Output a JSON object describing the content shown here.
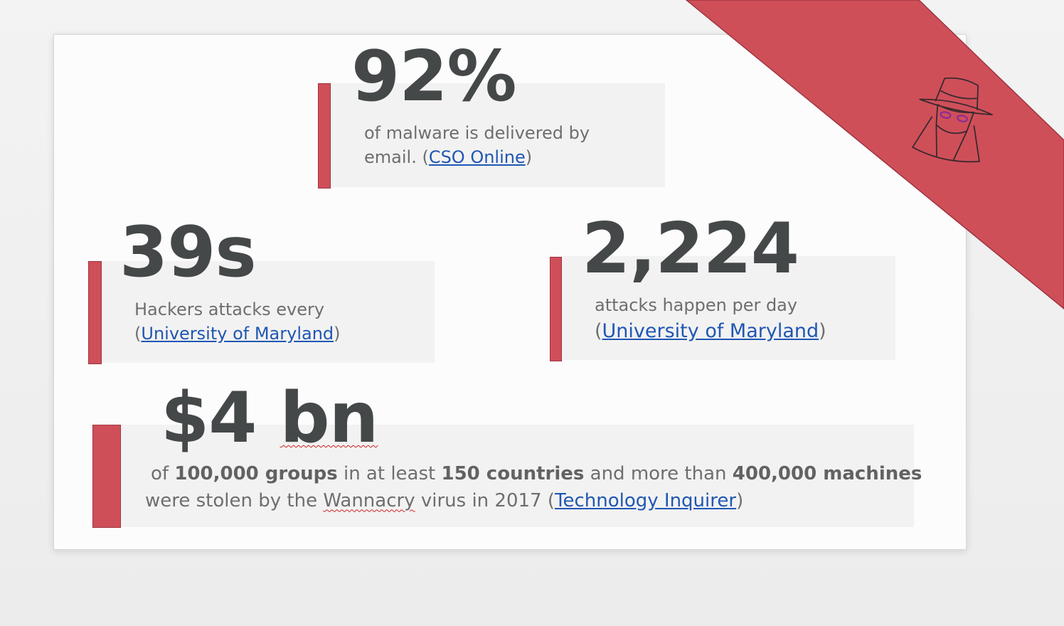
{
  "colors": {
    "accent": "#cf4f59",
    "big_number": "#454849",
    "text": "#6e6e6e",
    "link": "#1f57b3",
    "panel": "#f3f2f2"
  },
  "stats": {
    "malware": {
      "value": "92%",
      "line1": "of malware is delivered by",
      "line2_pre": "email. (",
      "source": "CSO Online",
      "line2_post": ")"
    },
    "hackers": {
      "value": "39s",
      "line1": "Hackers attacks every",
      "line2_pre": "(",
      "source": "University of Maryland",
      "line2_post": ")"
    },
    "attacks": {
      "value": "2,224",
      "line1": "attacks happen per day",
      "line2_pre": "(",
      "source": "University of Maryland",
      "line2_post": ")"
    },
    "wannacry": {
      "value_main": "$4 ",
      "value_unit": "bn",
      "t1": "of ",
      "b1": "100,000 groups",
      "t2": " in at least ",
      "b2": "150 countries",
      "t3": " and more than ",
      "b3": "400,000 machines",
      "t4": "were stolen by the ",
      "word": "Wannacry",
      "t5": " virus in 2017 (",
      "source": "Technology Inquirer",
      "t6": ")"
    }
  },
  "decoration": {
    "icon": "spy-hacker-icon"
  }
}
